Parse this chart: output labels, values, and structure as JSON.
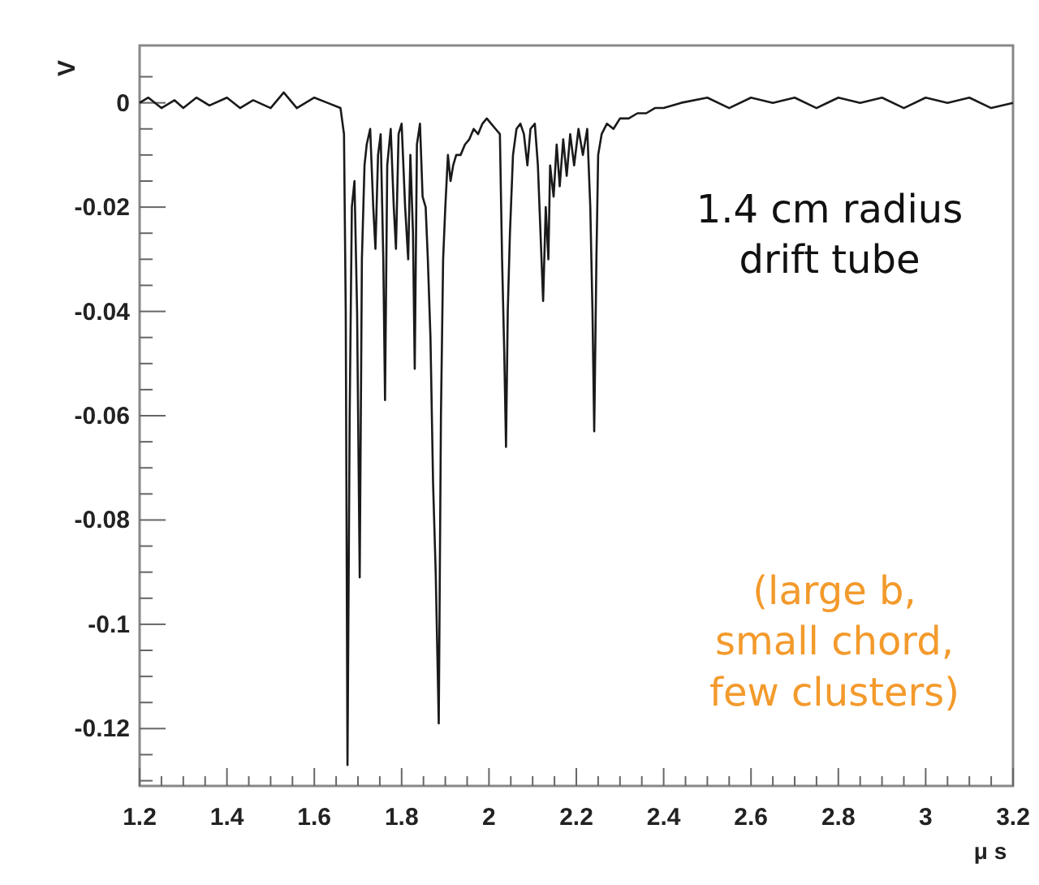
{
  "chart_data": {
    "type": "line",
    "xlabel": "μ s",
    "ylabel": "V",
    "annotations": [
      "1.4 cm radius\ndrift tube",
      "(large b,\nsmall chord,\nfew clusters)"
    ],
    "xlim": [
      1.2,
      3.2
    ],
    "ylim": [
      -0.131,
      0.011
    ],
    "xticks": [
      {
        "value": 1.2,
        "label": "1.2"
      },
      {
        "value": 1.4,
        "label": "1.4"
      },
      {
        "value": 1.6,
        "label": "1.6"
      },
      {
        "value": 1.8,
        "label": "1.8"
      },
      {
        "value": 2,
        "label": "2"
      },
      {
        "value": 2.2,
        "label": "2.2"
      },
      {
        "value": 2.4,
        "label": "2.4"
      },
      {
        "value": 2.6,
        "label": "2.6"
      },
      {
        "value": 2.8,
        "label": "2.8"
      },
      {
        "value": 3,
        "label": "3"
      },
      {
        "value": 3.2,
        "label": "3.2"
      },
      {
        "value": 1.25,
        "label": null
      },
      {
        "value": 1.3,
        "label": null
      },
      {
        "value": 1.35,
        "label": null
      },
      {
        "value": 1.45,
        "label": null
      },
      {
        "value": 1.5,
        "label": null
      },
      {
        "value": 1.55,
        "label": null
      },
      {
        "value": 1.65,
        "label": null
      },
      {
        "value": 1.7,
        "label": null
      },
      {
        "value": 1.75,
        "label": null
      },
      {
        "value": 1.85,
        "label": null
      },
      {
        "value": 1.9,
        "label": null
      },
      {
        "value": 1.95,
        "label": null
      },
      {
        "value": 2.05,
        "label": null
      },
      {
        "value": 2.1,
        "label": null
      },
      {
        "value": 2.15,
        "label": null
      },
      {
        "value": 2.25,
        "label": null
      },
      {
        "value": 2.3,
        "label": null
      },
      {
        "value": 2.35,
        "label": null
      },
      {
        "value": 2.45,
        "label": null
      },
      {
        "value": 2.5,
        "label": null
      },
      {
        "value": 2.55,
        "label": null
      },
      {
        "value": 2.65,
        "label": null
      },
      {
        "value": 2.7,
        "label": null
      },
      {
        "value": 2.75,
        "label": null
      },
      {
        "value": 2.85,
        "label": null
      },
      {
        "value": 2.9,
        "label": null
      },
      {
        "value": 2.95,
        "label": null
      },
      {
        "value": 3.05,
        "label": null
      },
      {
        "value": 3.1,
        "label": null
      },
      {
        "value": 3.15,
        "label": null
      }
    ],
    "yticks": [
      {
        "value": 0,
        "label": "0"
      },
      {
        "value": -0.02,
        "label": "-0.02"
      },
      {
        "value": -0.04,
        "label": "-0.04"
      },
      {
        "value": -0.06,
        "label": "-0.06"
      },
      {
        "value": -0.08,
        "label": "-0.08"
      },
      {
        "value": -0.1,
        "label": "-0.1"
      },
      {
        "value": -0.12,
        "label": "-0.12"
      },
      {
        "value": 0.005,
        "label": null
      },
      {
        "value": -0.005,
        "label": null
      },
      {
        "value": -0.01,
        "label": null
      },
      {
        "value": -0.015,
        "label": null
      },
      {
        "value": -0.025,
        "label": null
      },
      {
        "value": -0.03,
        "label": null
      },
      {
        "value": -0.035,
        "label": null
      },
      {
        "value": -0.045,
        "label": null
      },
      {
        "value": -0.05,
        "label": null
      },
      {
        "value": -0.055,
        "label": null
      },
      {
        "value": -0.065,
        "label": null
      },
      {
        "value": -0.07,
        "label": null
      },
      {
        "value": -0.075,
        "label": null
      },
      {
        "value": -0.085,
        "label": null
      },
      {
        "value": -0.09,
        "label": null
      },
      {
        "value": -0.095,
        "label": null
      },
      {
        "value": -0.105,
        "label": null
      },
      {
        "value": -0.11,
        "label": null
      },
      {
        "value": -0.115,
        "label": null
      },
      {
        "value": -0.125,
        "label": null
      },
      {
        "value": -0.13,
        "label": null
      }
    ],
    "grid": false,
    "marker": "none",
    "line_style": "solid",
    "series": [
      {
        "color": "#1a1a1a",
        "x": [
          1.2,
          1.22,
          1.25,
          1.28,
          1.3,
          1.33,
          1.36,
          1.4,
          1.43,
          1.46,
          1.5,
          1.53,
          1.56,
          1.6,
          1.63,
          1.66,
          1.668,
          1.672,
          1.676,
          1.681,
          1.686,
          1.692,
          1.698,
          1.704,
          1.709,
          1.715,
          1.72,
          1.728,
          1.735,
          1.74,
          1.746,
          1.752,
          1.758,
          1.762,
          1.767,
          1.775,
          1.782,
          1.787,
          1.793,
          1.8,
          1.808,
          1.815,
          1.82,
          1.826,
          1.83,
          1.835,
          1.842,
          1.848,
          1.855,
          1.86,
          1.866,
          1.872,
          1.878,
          1.885,
          1.89,
          1.895,
          1.9,
          1.906,
          1.912,
          1.918,
          1.925,
          1.935,
          1.945,
          1.955,
          1.965,
          1.975,
          1.985,
          1.995,
          2.005,
          2.015,
          2.025,
          2.03,
          2.035,
          2.039,
          2.043,
          2.048,
          2.055,
          2.063,
          2.072,
          2.08,
          2.088,
          2.095,
          2.105,
          2.112,
          2.118,
          2.124,
          2.13,
          2.136,
          2.14,
          2.148,
          2.155,
          2.162,
          2.17,
          2.178,
          2.186,
          2.195,
          2.205,
          2.215,
          2.225,
          2.232,
          2.237,
          2.241,
          2.246,
          2.25,
          2.258,
          2.27,
          2.285,
          2.3,
          2.32,
          2.34,
          2.36,
          2.38,
          2.4,
          2.44,
          2.5,
          2.55,
          2.6,
          2.65,
          2.7,
          2.75,
          2.8,
          2.85,
          2.9,
          2.95,
          3.0,
          3.05,
          3.1,
          3.15,
          3.2
        ],
        "values": [
          0,
          0.001,
          -0.001,
          0.0005,
          -0.001,
          0.001,
          -0.0005,
          0.001,
          -0.001,
          0.0005,
          -0.001,
          0.002,
          -0.001,
          0.001,
          0,
          -0.001,
          -0.006,
          -0.04,
          -0.127,
          -0.06,
          -0.02,
          -0.015,
          -0.04,
          -0.091,
          -0.03,
          -0.012,
          -0.008,
          -0.005,
          -0.02,
          -0.028,
          -0.01,
          -0.006,
          -0.03,
          -0.057,
          -0.012,
          -0.005,
          -0.02,
          -0.028,
          -0.006,
          -0.004,
          -0.02,
          -0.03,
          -0.01,
          -0.025,
          -0.051,
          -0.008,
          -0.004,
          -0.018,
          -0.02,
          -0.03,
          -0.045,
          -0.073,
          -0.09,
          -0.119,
          -0.06,
          -0.03,
          -0.02,
          -0.01,
          -0.015,
          -0.012,
          -0.01,
          -0.01,
          -0.008,
          -0.007,
          -0.005,
          -0.006,
          -0.004,
          -0.003,
          -0.004,
          -0.005,
          -0.006,
          -0.03,
          -0.048,
          -0.066,
          -0.04,
          -0.025,
          -0.01,
          -0.005,
          -0.004,
          -0.006,
          -0.012,
          -0.005,
          -0.004,
          -0.012,
          -0.025,
          -0.038,
          -0.02,
          -0.03,
          -0.012,
          -0.018,
          -0.008,
          -0.016,
          -0.007,
          -0.014,
          -0.006,
          -0.012,
          -0.005,
          -0.01,
          -0.005,
          -0.02,
          -0.04,
          -0.063,
          -0.03,
          -0.01,
          -0.006,
          -0.004,
          -0.005,
          -0.003,
          -0.003,
          -0.002,
          -0.002,
          -0.001,
          -0.001,
          0,
          0.001,
          -0.001,
          0.001,
          0,
          0.001,
          -0.001,
          0.001,
          0,
          0.001,
          -0.001,
          0.001,
          0,
          0.001,
          -0.001,
          0
        ]
      }
    ]
  }
}
